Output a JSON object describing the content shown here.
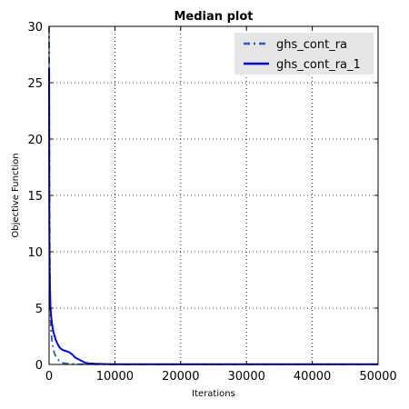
{
  "chart_data": {
    "type": "line",
    "title": "Median plot",
    "xlabel": "Iterations",
    "ylabel": "Objective Function",
    "xlim": [
      0,
      50000
    ],
    "ylim": [
      0,
      30
    ],
    "xticks": [
      0,
      10000,
      20000,
      30000,
      40000,
      50000
    ],
    "yticks": [
      0,
      5,
      10,
      15,
      20,
      25,
      30
    ],
    "xtick_labels": [
      "0",
      "10000",
      "20000",
      "30000",
      "40000",
      "50000"
    ],
    "ytick_labels": [
      "0",
      "5",
      "10",
      "15",
      "20",
      "25",
      "30"
    ],
    "grid": true,
    "legend_position": "top-right",
    "series": [
      {
        "name": "ghs_cont_ra",
        "style": "dash-dot",
        "color": "#1f5fbf",
        "x": [
          0,
          30,
          60,
          100,
          150,
          200,
          300,
          500,
          800,
          1200,
          2000,
          3000,
          5000,
          10000,
          20000,
          30000,
          40000,
          50000
        ],
        "y": [
          30,
          22,
          16,
          11,
          7,
          4.5,
          3,
          1.8,
          1.0,
          0.5,
          0.15,
          0.05,
          0.02,
          0.01,
          0.01,
          0.01,
          0.01,
          0.01
        ]
      },
      {
        "name": "ghs_cont_ra_1",
        "style": "solid",
        "color": "#0000ff",
        "x": [
          0,
          30,
          60,
          100,
          150,
          200,
          300,
          450,
          600,
          800,
          1000,
          1300,
          1600,
          2000,
          2500,
          3000,
          3500,
          4000,
          4500,
          5000,
          5500,
          6000,
          7000,
          8000,
          10000,
          15000,
          20000,
          30000,
          40000,
          50000
        ],
        "y": [
          26.3,
          15,
          10,
          8,
          6.5,
          5.2,
          4.3,
          3.6,
          3.0,
          2.6,
          2.2,
          1.8,
          1.5,
          1.3,
          1.2,
          1.1,
          0.9,
          0.6,
          0.45,
          0.3,
          0.15,
          0.1,
          0.06,
          0.04,
          0.02,
          0.02,
          0.02,
          0.02,
          0.02,
          0.02
        ]
      }
    ]
  }
}
